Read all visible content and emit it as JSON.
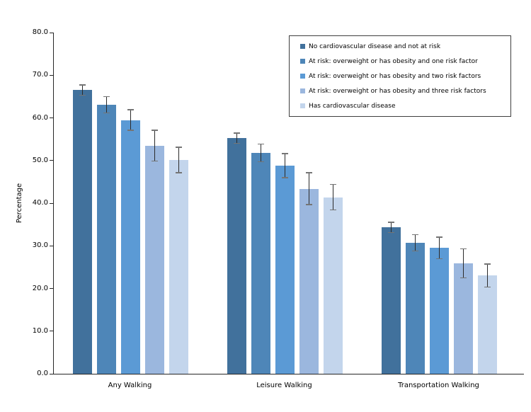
{
  "y_axis": {
    "title": "Percentage",
    "ticks": [
      {
        "value": 0,
        "label": "0.0"
      },
      {
        "value": 10,
        "label": "10.0"
      },
      {
        "value": 20,
        "label": "20.0"
      },
      {
        "value": 30,
        "label": "30.0"
      },
      {
        "value": 40,
        "label": "40.0"
      },
      {
        "value": 50,
        "label": "50.0"
      },
      {
        "value": 60,
        "label": "60.0"
      },
      {
        "value": 70,
        "label": "70.0"
      },
      {
        "value": 80,
        "label": "80.0"
      }
    ]
  },
  "chart_data": {
    "type": "bar",
    "title": "",
    "xlabel": "",
    "ylabel": "Percentage",
    "ylim": [
      0,
      80
    ],
    "grid": false,
    "error_bars": true,
    "legend_position": "top-right",
    "categories": [
      "Any Walking",
      "Leisure Walking",
      "Transportation Walking"
    ],
    "series": [
      {
        "name": "No cardiovascular disease and not at risk",
        "color": "#41719C",
        "values": [
          66.5,
          55.2,
          34.3
        ],
        "errors": [
          1.2,
          1.2,
          1.2
        ]
      },
      {
        "name": "At risk: overweight or has obesity and one risk factor",
        "color": "#4E86B8",
        "values": [
          63.1,
          51.8,
          30.7
        ],
        "errors": [
          1.9,
          2.1,
          1.9
        ]
      },
      {
        "name": "At risk: overweight or has obesity and two risk factors",
        "color": "#5B9AD5",
        "values": [
          59.5,
          48.8,
          29.5
        ],
        "errors": [
          2.4,
          2.8,
          2.5
        ]
      },
      {
        "name": "At risk: overweight or has obesity and three risk factors",
        "color": "#9BB7DE",
        "values": [
          53.5,
          43.4,
          25.9
        ],
        "errors": [
          3.6,
          3.7,
          3.4
        ]
      },
      {
        "name": "Has cardiovascular disease",
        "color": "#C3D5EC",
        "values": [
          50.1,
          41.4,
          23.0
        ],
        "errors": [
          3.0,
          3.0,
          2.7
        ]
      }
    ]
  }
}
